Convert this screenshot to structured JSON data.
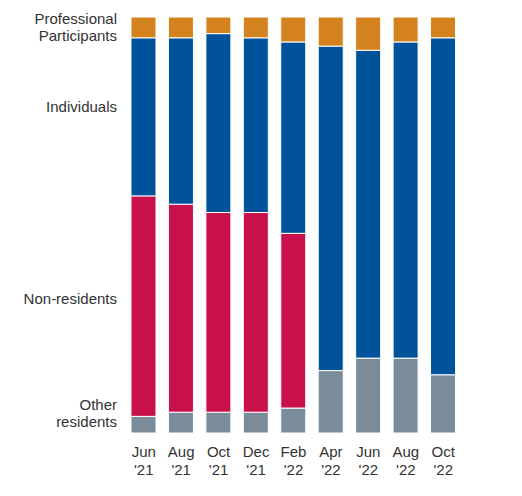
{
  "chart_data": {
    "type": "bar",
    "stacked": true,
    "tick_labels": "x",
    "categories": [
      "Jun '21",
      "Aug '21",
      "Oct '21",
      "Dec '21",
      "Feb '22",
      "Apr '22",
      "Jun '22",
      "Aug '22",
      "Oct '22"
    ],
    "ylim": [
      0,
      100
    ],
    "series": [
      {
        "name": "Other residents",
        "color": "#7a8c99",
        "values": [
          4,
          5,
          5,
          5,
          6,
          15,
          18,
          18,
          14
        ]
      },
      {
        "name": "Non-residents",
        "color": "#c8104a",
        "values": [
          53,
          50,
          48,
          48,
          42,
          0,
          0,
          0,
          0
        ]
      },
      {
        "name": "Individuals",
        "color": "#00529b",
        "values": [
          38,
          40,
          43,
          42,
          46,
          78,
          74,
          76,
          81
        ]
      },
      {
        "name": "Professional Participants",
        "color": "#d4821e",
        "values": [
          5,
          5,
          4,
          5,
          6,
          7,
          8,
          6,
          5
        ]
      }
    ]
  }
}
